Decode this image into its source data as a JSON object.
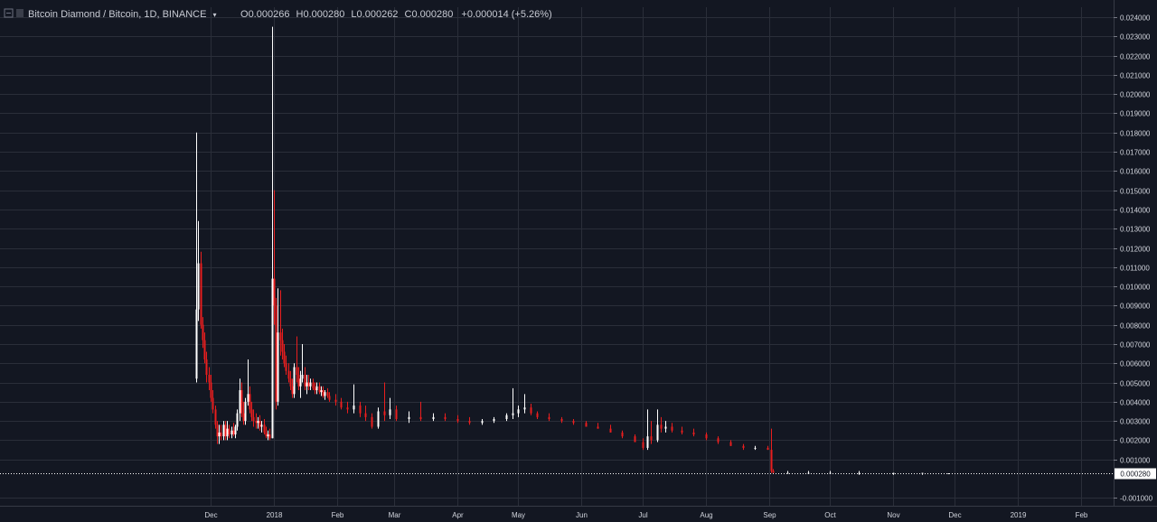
{
  "legend": {
    "symbol": "Bitcoin Diamond / Bitcoin, 1D, BINANCE",
    "open_label": "O",
    "open": "0.000266",
    "high_label": "H",
    "high": "0.000280",
    "low_label": "L",
    "low": "0.000262",
    "close_label": "C",
    "close": "0.000280",
    "change": "+0.000014 (+5.26%)"
  },
  "colors": {
    "background": "#131722",
    "grid": "#2a2e39",
    "up": "#ffffff",
    "down": "#e91e1e",
    "axis_text": "#d1d4dc",
    "price_line": "#ffffff"
  },
  "chart_data": {
    "type": "candlestick",
    "timeframe": "1D",
    "x_ticks": [
      "Dec",
      "2018",
      "Feb",
      "Mar",
      "Apr",
      "May",
      "Jun",
      "Jul",
      "Aug",
      "Sep",
      "Oct",
      "Nov",
      "Dec",
      "2019",
      "Feb"
    ],
    "y_ticks": [
      "0.024000",
      "0.023000",
      "0.022000",
      "0.021000",
      "0.020000",
      "0.019000",
      "0.018000",
      "0.017000",
      "0.016000",
      "0.015000",
      "0.014000",
      "0.013000",
      "0.012000",
      "0.011000",
      "0.010000",
      "0.009000",
      "0.008000",
      "0.007000",
      "0.006000",
      "0.005000",
      "0.004000",
      "0.003000",
      "0.002000",
      "0.001000",
      "-0.001000"
    ],
    "ylim": [
      -0.0012,
      0.0244
    ],
    "last_price_label": "0.000280",
    "last_price": 0.00028,
    "grid": true,
    "candles": [
      [
        "2017-11-24",
        0.0052,
        0.018,
        0.005,
        0.0088
      ],
      [
        "2017-11-25",
        0.0088,
        0.0134,
        0.0082,
        0.0112
      ],
      [
        "2017-11-26",
        0.0112,
        0.0118,
        0.0078,
        0.008
      ],
      [
        "2017-11-27",
        0.008,
        0.0084,
        0.0068,
        0.0072
      ],
      [
        "2017-11-28",
        0.0072,
        0.0076,
        0.006,
        0.0062
      ],
      [
        "2017-11-29",
        0.0062,
        0.0066,
        0.005,
        0.0054
      ],
      [
        "2017-11-30",
        0.0054,
        0.0058,
        0.0046,
        0.005
      ],
      [
        "2017-12-01",
        0.005,
        0.0054,
        0.004,
        0.0042
      ],
      [
        "2017-12-02",
        0.0042,
        0.0046,
        0.0034,
        0.0036
      ],
      [
        "2017-12-03",
        0.0036,
        0.0038,
        0.0026,
        0.0028
      ],
      [
        "2017-12-04",
        0.0028,
        0.003,
        0.0018,
        0.0022
      ],
      [
        "2017-12-05",
        0.0022,
        0.0028,
        0.0018,
        0.0024
      ],
      [
        "2017-12-06",
        0.0024,
        0.0028,
        0.002,
        0.0022
      ],
      [
        "2017-12-07",
        0.0022,
        0.003,
        0.002,
        0.0028
      ],
      [
        "2017-12-08",
        0.0028,
        0.003,
        0.002,
        0.0022
      ],
      [
        "2017-12-09",
        0.0022,
        0.003,
        0.002,
        0.0026
      ],
      [
        "2017-12-10",
        0.0026,
        0.0028,
        0.0021,
        0.0023
      ],
      [
        "2017-12-11",
        0.0023,
        0.0027,
        0.0021,
        0.0025
      ],
      [
        "2017-12-12",
        0.0025,
        0.0029,
        0.0022,
        0.0023
      ],
      [
        "2017-12-13",
        0.0023,
        0.0028,
        0.0021,
        0.0027
      ],
      [
        "2017-12-14",
        0.0027,
        0.0036,
        0.0025,
        0.0034
      ],
      [
        "2017-12-15",
        0.0034,
        0.0052,
        0.003,
        0.0046
      ],
      [
        "2017-12-16",
        0.0046,
        0.005,
        0.0032,
        0.0034
      ],
      [
        "2017-12-17",
        0.0034,
        0.004,
        0.0028,
        0.003
      ],
      [
        "2017-12-18",
        0.003,
        0.0042,
        0.0028,
        0.004
      ],
      [
        "2017-12-19",
        0.004,
        0.0062,
        0.0038,
        0.0044
      ],
      [
        "2017-12-20",
        0.0044,
        0.0048,
        0.0034,
        0.0036
      ],
      [
        "2017-12-21",
        0.0036,
        0.004,
        0.003,
        0.0032
      ],
      [
        "2017-12-22",
        0.0032,
        0.0036,
        0.0027,
        0.003
      ],
      [
        "2017-12-23",
        0.003,
        0.0034,
        0.0026,
        0.0029
      ],
      [
        "2017-12-24",
        0.0029,
        0.0032,
        0.0026,
        0.003
      ],
      [
        "2017-12-25",
        0.003,
        0.0033,
        0.0025,
        0.0027
      ],
      [
        "2017-12-26",
        0.0027,
        0.003,
        0.0024,
        0.0028
      ],
      [
        "2017-12-27",
        0.0028,
        0.0031,
        0.0023,
        0.0024
      ],
      [
        "2017-12-28",
        0.0024,
        0.0027,
        0.0021,
        0.0022
      ],
      [
        "2017-12-29",
        0.0022,
        0.0025,
        0.002,
        0.0023
      ],
      [
        "2017-12-30",
        0.0023,
        0.0026,
        0.002,
        0.0021
      ],
      [
        "2017-12-31",
        0.0021,
        0.0235,
        0.0021,
        0.0104
      ],
      [
        "2018-01-01",
        0.0104,
        0.015,
        0.008,
        0.009
      ],
      [
        "2018-01-02",
        0.009,
        0.0094,
        0.0036,
        0.004
      ],
      [
        "2018-01-03",
        0.004,
        0.0099,
        0.0038,
        0.0076
      ],
      [
        "2018-01-04",
        0.0076,
        0.0098,
        0.0064,
        0.0072
      ],
      [
        "2018-01-05",
        0.0072,
        0.0078,
        0.0062,
        0.0066
      ],
      [
        "2018-01-06",
        0.0066,
        0.007,
        0.0058,
        0.006
      ],
      [
        "2018-01-07",
        0.006,
        0.0064,
        0.0054,
        0.0056
      ],
      [
        "2018-01-08",
        0.0056,
        0.006,
        0.005,
        0.0052
      ],
      [
        "2018-01-09",
        0.0052,
        0.0056,
        0.0046,
        0.0048
      ],
      [
        "2018-01-10",
        0.0048,
        0.0052,
        0.0042,
        0.0044
      ],
      [
        "2018-01-11",
        0.0044,
        0.006,
        0.0042,
        0.0058
      ],
      [
        "2018-01-12",
        0.0058,
        0.0074,
        0.005,
        0.0054
      ],
      [
        "2018-01-13",
        0.0054,
        0.0058,
        0.0046,
        0.0048
      ],
      [
        "2018-01-14",
        0.0048,
        0.0056,
        0.0042,
        0.0052
      ],
      [
        "2018-01-15",
        0.0052,
        0.007,
        0.005,
        0.0054
      ],
      [
        "2018-01-16",
        0.0054,
        0.0058,
        0.0046,
        0.0048
      ],
      [
        "2018-01-17",
        0.0048,
        0.0054,
        0.0044,
        0.005
      ],
      [
        "2018-01-18",
        0.005,
        0.0054,
        0.0046,
        0.0048
      ],
      [
        "2018-01-19",
        0.0048,
        0.0052,
        0.0046,
        0.005
      ],
      [
        "2018-01-20",
        0.005,
        0.0052,
        0.0046,
        0.0047
      ],
      [
        "2018-01-21",
        0.0047,
        0.005,
        0.0044,
        0.0046
      ],
      [
        "2018-01-22",
        0.0046,
        0.005,
        0.0044,
        0.0048
      ],
      [
        "2018-01-23",
        0.0048,
        0.005,
        0.0044,
        0.0045
      ],
      [
        "2018-01-24",
        0.0045,
        0.0048,
        0.0043,
        0.0046
      ],
      [
        "2018-01-25",
        0.0046,
        0.0048,
        0.0042,
        0.0043
      ],
      [
        "2018-01-26",
        0.0043,
        0.0046,
        0.0041,
        0.0045
      ],
      [
        "2018-01-27",
        0.0045,
        0.0047,
        0.0042,
        0.0043
      ],
      [
        "2018-01-28",
        0.0043,
        0.0045,
        0.004,
        0.0041
      ],
      [
        "2018-01-31",
        0.0041,
        0.0044,
        0.0038,
        0.004
      ],
      [
        "2018-02-03",
        0.004,
        0.0042,
        0.0036,
        0.0037
      ],
      [
        "2018-02-06",
        0.0037,
        0.004,
        0.0034,
        0.0036
      ],
      [
        "2018-02-09",
        0.0036,
        0.0049,
        0.0034,
        0.0038
      ],
      [
        "2018-02-12",
        0.0038,
        0.004,
        0.0032,
        0.0034
      ],
      [
        "2018-02-15",
        0.0034,
        0.0038,
        0.003,
        0.0032
      ],
      [
        "2018-02-18",
        0.0032,
        0.0034,
        0.0026,
        0.0027
      ],
      [
        "2018-02-21",
        0.0027,
        0.0037,
        0.0026,
        0.0035
      ],
      [
        "2018-02-24",
        0.0035,
        0.005,
        0.003,
        0.0033
      ],
      [
        "2018-02-27",
        0.0033,
        0.0042,
        0.0031,
        0.0036
      ],
      [
        "2018-03-02",
        0.0036,
        0.0038,
        0.003,
        0.0031
      ],
      [
        "2018-03-08",
        0.0031,
        0.0035,
        0.0029,
        0.0032
      ],
      [
        "2018-03-14",
        0.0032,
        0.004,
        0.003,
        0.0031
      ],
      [
        "2018-03-20",
        0.0031,
        0.0034,
        0.003,
        0.0032
      ],
      [
        "2018-03-26",
        0.0032,
        0.0034,
        0.003,
        0.0031
      ],
      [
        "2018-04-01",
        0.0031,
        0.0033,
        0.0029,
        0.003
      ],
      [
        "2018-04-07",
        0.003,
        0.0032,
        0.0028,
        0.0029
      ],
      [
        "2018-04-13",
        0.0029,
        0.0031,
        0.0028,
        0.003
      ],
      [
        "2018-04-19",
        0.003,
        0.0032,
        0.0029,
        0.0031
      ],
      [
        "2018-04-25",
        0.0031,
        0.0034,
        0.003,
        0.0033
      ],
      [
        "2018-04-28",
        0.0033,
        0.0047,
        0.0031,
        0.0034
      ],
      [
        "2018-05-01",
        0.0034,
        0.0038,
        0.0032,
        0.0036
      ],
      [
        "2018-05-04",
        0.0036,
        0.0044,
        0.0034,
        0.0037
      ],
      [
        "2018-05-07",
        0.0037,
        0.0039,
        0.0033,
        0.0034
      ],
      [
        "2018-05-10",
        0.0034,
        0.0035,
        0.0031,
        0.0032
      ],
      [
        "2018-05-16",
        0.0032,
        0.0034,
        0.003,
        0.0031
      ],
      [
        "2018-05-22",
        0.0031,
        0.0032,
        0.0029,
        0.003
      ],
      [
        "2018-05-28",
        0.003,
        0.0031,
        0.0028,
        0.0029
      ],
      [
        "2018-06-03",
        0.0029,
        0.003,
        0.0027,
        0.0027
      ],
      [
        "2018-06-09",
        0.0027,
        0.0029,
        0.0026,
        0.0026
      ],
      [
        "2018-06-15",
        0.0026,
        0.0028,
        0.0024,
        0.0024
      ],
      [
        "2018-06-21",
        0.0024,
        0.0025,
        0.0021,
        0.0022
      ],
      [
        "2018-06-27",
        0.0022,
        0.0023,
        0.0019,
        0.0019
      ],
      [
        "2018-07-01",
        0.0019,
        0.0021,
        0.0015,
        0.0016
      ],
      [
        "2018-07-03",
        0.0016,
        0.0036,
        0.0015,
        0.0022
      ],
      [
        "2018-07-05",
        0.0022,
        0.003,
        0.0018,
        0.002
      ],
      [
        "2018-07-08",
        0.002,
        0.0036,
        0.0019,
        0.0028
      ],
      [
        "2018-07-10",
        0.0028,
        0.0032,
        0.0024,
        0.0026
      ],
      [
        "2018-07-12",
        0.0026,
        0.003,
        0.0024,
        0.0027
      ],
      [
        "2018-07-15",
        0.0027,
        0.0029,
        0.0024,
        0.0025
      ],
      [
        "2018-07-20",
        0.0025,
        0.0027,
        0.0023,
        0.0024
      ],
      [
        "2018-07-26",
        0.0024,
        0.0026,
        0.0022,
        0.0023
      ],
      [
        "2018-08-01",
        0.0023,
        0.0024,
        0.002,
        0.0021
      ],
      [
        "2018-08-07",
        0.0021,
        0.0022,
        0.0018,
        0.0019
      ],
      [
        "2018-08-13",
        0.0019,
        0.002,
        0.0017,
        0.0017
      ],
      [
        "2018-08-19",
        0.0017,
        0.0018,
        0.0015,
        0.0016
      ],
      [
        "2018-08-25",
        0.0016,
        0.0017,
        0.0015,
        0.0016
      ],
      [
        "2018-08-31",
        0.0016,
        0.0017,
        0.0015,
        0.0015
      ],
      [
        "2018-09-02",
        0.0015,
        0.0026,
        0.0003,
        0.0004
      ],
      [
        "2018-09-03",
        0.0004,
        0.0005,
        0.0003,
        0.0003
      ],
      [
        "2018-09-10",
        0.0003,
        0.0004,
        0.0003,
        0.0003
      ],
      [
        "2018-09-20",
        0.0003,
        0.0004,
        0.0003,
        0.0003
      ],
      [
        "2018-10-01",
        0.0003,
        0.0004,
        0.0003,
        0.0003
      ],
      [
        "2018-10-15",
        0.0003,
        0.0004,
        0.0002,
        0.0003
      ],
      [
        "2018-11-01",
        0.0003,
        0.0003,
        0.0002,
        0.0003
      ],
      [
        "2018-11-15",
        0.0003,
        0.0003,
        0.0002,
        0.0003
      ],
      [
        "2018-11-28",
        0.000266,
        0.00028,
        0.000262,
        0.00028
      ]
    ]
  }
}
